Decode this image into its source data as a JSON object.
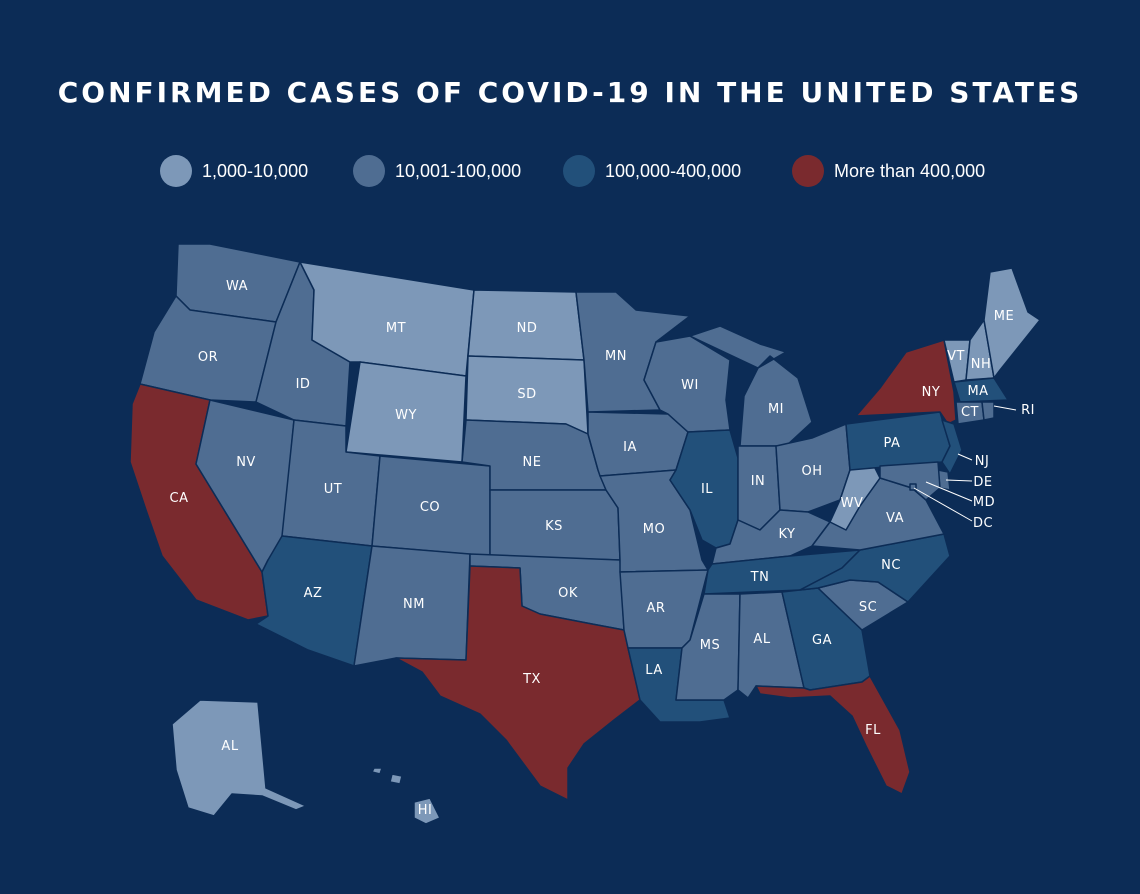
{
  "title": "CONFIRMED CASES OF COVID-19 IN THE UNITED STATES",
  "legend": [
    {
      "label": "1,000-10,000",
      "color": "#7d98b8"
    },
    {
      "label": "10,001-100,000",
      "color": "#4f6d92"
    },
    {
      "label": "100,000-400,000",
      "color": "#22507a"
    },
    {
      "label": "More than 400,000",
      "color": "#7a2a2e"
    }
  ],
  "states": {
    "WA": {
      "label": "WA",
      "level": 1
    },
    "OR": {
      "label": "OR",
      "level": 1
    },
    "CA": {
      "label": "CA",
      "level": 3
    },
    "ID": {
      "label": "ID",
      "level": 1
    },
    "NV": {
      "label": "NV",
      "level": 1
    },
    "MT": {
      "label": "MT",
      "level": 0
    },
    "WY": {
      "label": "WY",
      "level": 0
    },
    "UT": {
      "label": "UT",
      "level": 1
    },
    "AZ": {
      "label": "AZ",
      "level": 2
    },
    "CO": {
      "label": "CO",
      "level": 1
    },
    "NM": {
      "label": "NM",
      "level": 1
    },
    "ND": {
      "label": "ND",
      "level": 0
    },
    "SD": {
      "label": "SD",
      "level": 0
    },
    "NE": {
      "label": "NE",
      "level": 1
    },
    "KS": {
      "label": "KS",
      "level": 1
    },
    "OK": {
      "label": "OK",
      "level": 1
    },
    "TX": {
      "label": "TX",
      "level": 3
    },
    "MN": {
      "label": "MN",
      "level": 1
    },
    "IA": {
      "label": "IA",
      "level": 1
    },
    "MO": {
      "label": "MO",
      "level": 1
    },
    "AR": {
      "label": "AR",
      "level": 1
    },
    "LA": {
      "label": "LA",
      "level": 2
    },
    "WI": {
      "label": "WI",
      "level": 1
    },
    "IL": {
      "label": "IL",
      "level": 2
    },
    "MI": {
      "label": "MI",
      "level": 1
    },
    "IN": {
      "label": "IN",
      "level": 1
    },
    "OH": {
      "label": "OH",
      "level": 1
    },
    "KY": {
      "label": "KY",
      "level": 1
    },
    "TN": {
      "label": "TN",
      "level": 2
    },
    "MS": {
      "label": "MS",
      "level": 1
    },
    "AL": {
      "label": "AL",
      "level": 1
    },
    "GA": {
      "label": "GA",
      "level": 2
    },
    "FL": {
      "label": "FL",
      "level": 3
    },
    "SC": {
      "label": "SC",
      "level": 1
    },
    "NC": {
      "label": "NC",
      "level": 2
    },
    "VA": {
      "label": "VA",
      "level": 1
    },
    "WV": {
      "label": "WV",
      "level": 0
    },
    "PA": {
      "label": "PA",
      "level": 2
    },
    "NY": {
      "label": "NY",
      "level": 3
    },
    "VT": {
      "label": "VT",
      "level": 0
    },
    "NH": {
      "label": "NH",
      "level": 0
    },
    "ME": {
      "label": "ME",
      "level": 0
    },
    "MA": {
      "label": "MA",
      "level": 2
    },
    "CT": {
      "label": "CT",
      "level": 1
    },
    "RI": {
      "label": "RI",
      "level": 1
    },
    "NJ": {
      "label": "NJ",
      "level": 2
    },
    "DE": {
      "label": "DE",
      "level": 1
    },
    "MD": {
      "label": "MD",
      "level": 1
    },
    "DC": {
      "label": "DC",
      "level": 1
    },
    "AK": {
      "label": "AL",
      "level": 0
    },
    "HI": {
      "label": "HI",
      "level": 0
    }
  }
}
